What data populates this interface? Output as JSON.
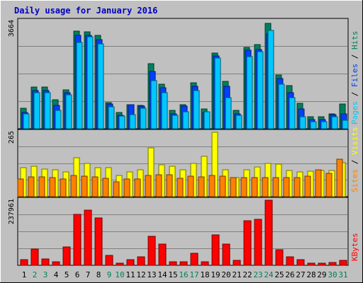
{
  "title": "Daily usage for January 2016",
  "colors": {
    "background": "#c0c0c0",
    "title": "#0000c0",
    "hits": "#00805c",
    "files": "#0040ff",
    "pages": "#00c8ff",
    "visits": "#ffff00",
    "sites": "#ff8000",
    "kbytes": "#ff0000",
    "day_normal": "#000000",
    "day_weekend": "#00805c",
    "separator": "#000000"
  },
  "chart_data": [
    {
      "type": "bar",
      "name": "hits-files-pages",
      "max_label": "3664",
      "ymax": 3664,
      "right_labels": [
        "Pages",
        "Files",
        "Hits"
      ],
      "categories": [
        "1",
        "2",
        "3",
        "4",
        "5",
        "6",
        "7",
        "8",
        "9",
        "10",
        "11",
        "12",
        "13",
        "14",
        "15",
        "16",
        "17",
        "18",
        "19",
        "20",
        "21",
        "22",
        "23",
        "24",
        "25",
        "26",
        "27",
        "28",
        "29",
        "30",
        "31"
      ],
      "series": [
        {
          "name": "Hits",
          "values": [
            700,
            1430,
            1420,
            1000,
            1320,
            3320,
            3300,
            3170,
            890,
            560,
            820,
            790,
            2220,
            1530,
            630,
            830,
            1570,
            680,
            2580,
            1620,
            630,
            2780,
            2870,
            3590,
            1840,
            1460,
            870,
            400,
            420,
            510,
            850
          ]
        },
        {
          "name": "Files",
          "values": [
            560,
            1310,
            1310,
            800,
            1220,
            3170,
            3180,
            3030,
            840,
            470,
            810,
            770,
            1950,
            1400,
            510,
            780,
            1450,
            560,
            2490,
            1440,
            500,
            2680,
            2700,
            3240,
            1700,
            1220,
            680,
            320,
            310,
            480,
            500
          ]
        },
        {
          "name": "Pages",
          "values": [
            510,
            1230,
            1220,
            630,
            1150,
            2950,
            3130,
            2890,
            750,
            440,
            480,
            700,
            1650,
            1230,
            460,
            590,
            1300,
            590,
            2420,
            1060,
            450,
            2460,
            2620,
            3350,
            1520,
            1060,
            400,
            240,
            240,
            420,
            290
          ]
        }
      ]
    },
    {
      "type": "bar",
      "name": "visits-sites",
      "max_label": "265",
      "ymax": 265,
      "right_labels": [
        "Sites",
        "Visits"
      ],
      "categories": [
        "1",
        "2",
        "3",
        "4",
        "5",
        "6",
        "7",
        "8",
        "9",
        "10",
        "11",
        "12",
        "13",
        "14",
        "15",
        "16",
        "17",
        "18",
        "19",
        "20",
        "21",
        "22",
        "23",
        "24",
        "25",
        "26",
        "27",
        "28",
        "29",
        "30",
        "31"
      ],
      "series": [
        {
          "name": "Visits",
          "values": [
            120,
            125,
            113,
            110,
            102,
            161,
            138,
            120,
            119,
            88,
            103,
            112,
            201,
            131,
            125,
            110,
            137,
            167,
            265,
            110,
            78,
            112,
            123,
            138,
            135,
            108,
            102,
            106,
            108,
            108,
            140
          ]
        },
        {
          "name": "Sites",
          "values": [
            74,
            82,
            82,
            78,
            72,
            87,
            84,
            82,
            75,
            60,
            74,
            72,
            88,
            89,
            90,
            77,
            84,
            81,
            88,
            83,
            78,
            79,
            78,
            78,
            80,
            79,
            79,
            83,
            111,
            96,
            153
          ]
        }
      ]
    },
    {
      "type": "bar",
      "name": "kbytes",
      "max_label": "237961",
      "ymax": 237961,
      "right_labels": [
        "KBytes"
      ],
      "categories": [
        "1",
        "2",
        "3",
        "4",
        "5",
        "6",
        "7",
        "8",
        "9",
        "10",
        "11",
        "12",
        "13",
        "14",
        "15",
        "16",
        "17",
        "18",
        "19",
        "20",
        "21",
        "22",
        "23",
        "24",
        "25",
        "26",
        "27",
        "28",
        "29",
        "30",
        "31"
      ],
      "series": [
        {
          "name": "KBytes",
          "values": [
            20000,
            59000,
            22000,
            14000,
            66000,
            186000,
            201000,
            173000,
            37000,
            8000,
            21000,
            31000,
            107000,
            77000,
            14000,
            14000,
            43000,
            14000,
            110000,
            78000,
            17000,
            162000,
            168000,
            237961,
            57000,
            31000,
            20000,
            9000,
            9000,
            11000,
            17000
          ]
        }
      ]
    }
  ],
  "days": {
    "labels": [
      "1",
      "2",
      "3",
      "4",
      "5",
      "6",
      "7",
      "8",
      "9",
      "10",
      "11",
      "12",
      "13",
      "14",
      "15",
      "16",
      "17",
      "18",
      "19",
      "20",
      "21",
      "22",
      "23",
      "24",
      "25",
      "26",
      "27",
      "28",
      "29",
      "30",
      "31"
    ],
    "weekend": [
      2,
      3,
      9,
      10,
      16,
      17,
      23,
      24,
      30,
      31
    ]
  }
}
